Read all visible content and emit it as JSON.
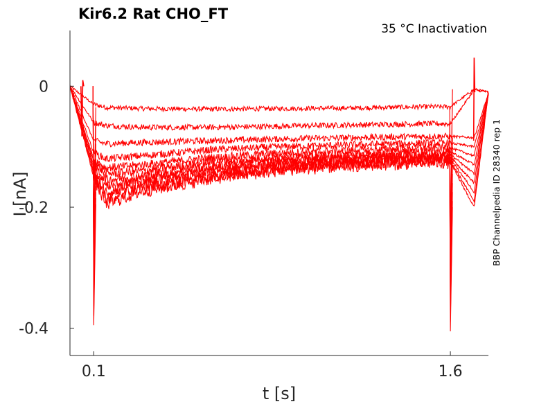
{
  "chart_data": {
    "type": "line",
    "title": "Kir6.2  Rat  CHO_FT",
    "condition_label": "35 °C  Inactivation",
    "side_label": "BBP Channelpedia ID 28340 rep 1",
    "xlabel": "t [s]",
    "ylabel": "I [nA]",
    "xlim": [
      0.0,
      1.76
    ],
    "ylim": [
      -0.445,
      0.092
    ],
    "x_ticks": [
      0.1,
      1.6
    ],
    "x_tick_labels": [
      "0.1",
      "1.6"
    ],
    "y_ticks": [
      0,
      -0.2,
      -0.4
    ],
    "y_tick_labels": [
      "0",
      "-0.2",
      "-0.4"
    ],
    "grid": false,
    "line_color": "#ff0000",
    "sweep_t": [
      0.0,
      0.1,
      0.15,
      0.3,
      0.6,
      0.9,
      1.2,
      1.5,
      1.6,
      1.7,
      1.76
    ],
    "series": [
      {
        "values": [
          0.0,
          -0.03,
          -0.035,
          -0.037,
          -0.038,
          -0.037,
          -0.036,
          -0.034,
          -0.034,
          -0.005,
          -0.01
        ]
      },
      {
        "values": [
          0.0,
          -0.06,
          -0.065,
          -0.068,
          -0.068,
          -0.066,
          -0.064,
          -0.062,
          -0.062,
          -0.006,
          -0.01
        ]
      },
      {
        "values": [
          0.0,
          -0.09,
          -0.095,
          -0.093,
          -0.09,
          -0.087,
          -0.085,
          -0.083,
          -0.083,
          -0.085,
          -0.012
        ]
      },
      {
        "values": [
          0.0,
          -0.11,
          -0.12,
          -0.115,
          -0.105,
          -0.1,
          -0.097,
          -0.094,
          -0.094,
          -0.1,
          -0.012
        ]
      },
      {
        "values": [
          0.0,
          -0.12,
          -0.135,
          -0.13,
          -0.118,
          -0.11,
          -0.106,
          -0.102,
          -0.102,
          -0.115,
          -0.012
        ]
      },
      {
        "values": [
          0.0,
          -0.125,
          -0.145,
          -0.14,
          -0.125,
          -0.117,
          -0.112,
          -0.108,
          -0.108,
          -0.13,
          -0.012
        ]
      },
      {
        "values": [
          0.0,
          -0.13,
          -0.155,
          -0.148,
          -0.132,
          -0.122,
          -0.117,
          -0.113,
          -0.113,
          -0.145,
          -0.012
        ]
      },
      {
        "values": [
          0.0,
          -0.135,
          -0.165,
          -0.155,
          -0.138,
          -0.127,
          -0.121,
          -0.117,
          -0.117,
          -0.16,
          -0.012
        ]
      },
      {
        "values": [
          0.0,
          -0.14,
          -0.175,
          -0.162,
          -0.143,
          -0.131,
          -0.125,
          -0.12,
          -0.12,
          -0.175,
          -0.012
        ]
      },
      {
        "values": [
          0.0,
          -0.145,
          -0.185,
          -0.168,
          -0.148,
          -0.135,
          -0.128,
          -0.123,
          -0.123,
          -0.19,
          -0.012
        ]
      },
      {
        "values": [
          0.0,
          -0.15,
          -0.195,
          -0.174,
          -0.152,
          -0.138,
          -0.131,
          -0.126,
          -0.126,
          -0.2,
          -0.012
        ]
      }
    ],
    "transients": {
      "pre_step_t": 0.05,
      "pre_step_dip": -0.083,
      "onset_peak_t": 0.1,
      "onset_peak": -0.395,
      "offset_peak_t": 1.6,
      "offset_peak": -0.405,
      "return_spike_t": 1.7,
      "return_spike": 0.047
    }
  }
}
